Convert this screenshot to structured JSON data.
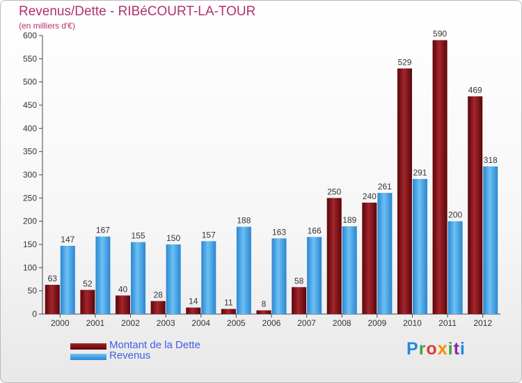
{
  "chart_data": {
    "type": "bar",
    "title": "Revenus/Dette - RIBéCOURT-LA-TOUR",
    "subtitle": "(en milliers d'€)",
    "categories": [
      "2000",
      "2001",
      "2002",
      "2003",
      "2004",
      "2005",
      "2006",
      "2007",
      "2008",
      "2009",
      "2010",
      "2011",
      "2012"
    ],
    "series": [
      {
        "name": "Montant de la Dette",
        "color": "#7a0f14",
        "values": [
          63,
          52,
          40,
          28,
          14,
          11,
          8,
          58,
          250,
          240,
          529,
          590,
          469
        ]
      },
      {
        "name": "Revenus",
        "color": "#3aa0e8",
        "values": [
          147,
          167,
          155,
          150,
          157,
          188,
          163,
          166,
          189,
          261,
          291,
          200,
          318
        ]
      }
    ],
    "ylim": [
      0,
      600
    ],
    "yticks": [
      0,
      50,
      100,
      150,
      200,
      250,
      300,
      350,
      400,
      450,
      500,
      550,
      600
    ],
    "grid": false,
    "legend_position": "bottom-left"
  },
  "logo": {
    "letters": [
      "P",
      "r",
      "o",
      "x",
      "i",
      "t",
      "i"
    ],
    "colors": [
      "#1e88e5",
      "#43a047",
      "#e53935",
      "#fb8c00",
      "#43a047",
      "#8e24aa",
      "#1e88e5"
    ]
  }
}
